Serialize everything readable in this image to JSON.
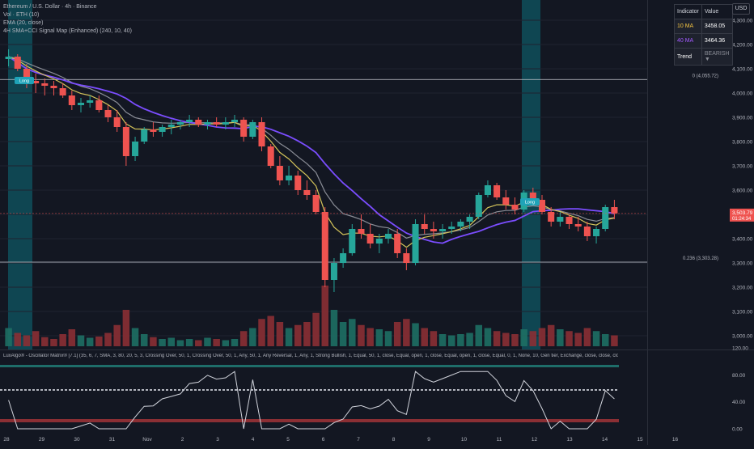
{
  "header": {
    "symbol_title": "Ethereum / U.S. Dollar · 4h · Binance",
    "volume_label": "Vol · ETH (10)",
    "ema_label": "EMA (20, close)",
    "signal_label": "4H SMA+CCI Signal Map (Enhanced) (240, 10, 40)",
    "currency_button": "USD"
  },
  "indicator_table": {
    "header": [
      "Indicator",
      "Value"
    ],
    "rows": [
      {
        "name": "10 MA",
        "value": "3458.05",
        "color": "#f5c542"
      },
      {
        "name": "40 MA",
        "value": "3464.36",
        "color": "#a259ff"
      },
      {
        "name": "Trend",
        "value": "BEARISH ▼",
        "color": "#8a8d96"
      }
    ]
  },
  "oscillator": {
    "title": "LuxAlgo® - Oscillator Matrix® [7.1] (35, 6, 7, SMA, 3, 80, 20, 5, 3, Crossing Over, 50, 1, Crossing Over, 50, 1, Any, 50, 1, Any Reversal, 1, Any, 1, Strong Bullish, 1, Equal, 50, 1, close, Equal, open, 1, close, Equal, open, 1, close, Equal, 0, 1, None, 10, Gen tier, Exchange, close, close, close, close, close, Top, 25,000)",
    "axis_labels": [
      "120.00",
      "80.00",
      "40.00",
      "0.00"
    ]
  },
  "price_axis": {
    "labels": [
      "4,300.00",
      "4,200.00",
      "4,100.00",
      "4,000.00",
      "3,900.00",
      "3,800.00",
      "3,700.00",
      "3,600.00",
      "3,500.00",
      "3,400.00",
      "3,300.00",
      "3,200.00",
      "3,100.00",
      "3,000.00"
    ],
    "current_price": "3,503.79",
    "countdown": "01:24:34"
  },
  "time_axis": {
    "labels": [
      "28",
      "29",
      "30",
      "31",
      "Nov",
      "2",
      "3",
      "4",
      "5",
      "6",
      "7",
      "8",
      "9",
      "10",
      "11",
      "12",
      "13",
      "14",
      "15",
      "16"
    ]
  },
  "fib_levels": [
    {
      "label": "0 (4,055.72)",
      "price": 4055.72
    },
    {
      "label": "0.236 (3,303.28)",
      "price": 3303.28
    }
  ],
  "signal_badges": {
    "long_label": "Long",
    "short_label": "Lon"
  },
  "colors": {
    "background": "#131722",
    "bull": "#26a69a",
    "bear": "#ef5350",
    "ema20": "#d4c45a",
    "ma40": "#7b4dff",
    "ma_gray": "#8a8d96",
    "highlight_band": "#0f4f5a",
    "price_tag": "#ef5350"
  },
  "chart_data": {
    "type": "candlestick",
    "timeframe": "4h",
    "ylim": [
      2950,
      4350
    ],
    "fib_levels": [
      4055.72,
      3303.28
    ],
    "current_price": 3503.79,
    "ohlc": [
      [
        4140,
        4180,
        4110,
        4150
      ],
      [
        4150,
        4160,
        4090,
        4100
      ],
      [
        4100,
        4120,
        4020,
        4050
      ],
      [
        4050,
        4080,
        4000,
        4040
      ],
      [
        4040,
        4060,
        3990,
        4030
      ],
      [
        4030,
        4050,
        3990,
        4020
      ],
      [
        4020,
        4040,
        3980,
        3990
      ],
      [
        3990,
        4010,
        3930,
        3950
      ],
      [
        3950,
        3980,
        3920,
        3960
      ],
      [
        3960,
        3990,
        3940,
        3970
      ],
      [
        3970,
        3990,
        3920,
        3930
      ],
      [
        3930,
        3950,
        3880,
        3900
      ],
      [
        3900,
        3930,
        3840,
        3860
      ],
      [
        3860,
        3880,
        3700,
        3740
      ],
      [
        3740,
        3820,
        3720,
        3800
      ],
      [
        3800,
        3860,
        3790,
        3850
      ],
      [
        3850,
        3880,
        3820,
        3840
      ],
      [
        3840,
        3870,
        3820,
        3860
      ],
      [
        3860,
        3890,
        3830,
        3870
      ],
      [
        3870,
        3890,
        3850,
        3880
      ],
      [
        3880,
        3910,
        3860,
        3890
      ],
      [
        3890,
        3900,
        3860,
        3870
      ],
      [
        3870,
        3890,
        3850,
        3880
      ],
      [
        3880,
        3900,
        3860,
        3870
      ],
      [
        3870,
        3900,
        3850,
        3880
      ],
      [
        3880,
        3910,
        3860,
        3890
      ],
      [
        3890,
        3900,
        3800,
        3820
      ],
      [
        3820,
        3890,
        3810,
        3880
      ],
      [
        3880,
        3900,
        3760,
        3780
      ],
      [
        3780,
        3790,
        3690,
        3700
      ],
      [
        3700,
        3740,
        3620,
        3640
      ],
      [
        3640,
        3700,
        3620,
        3660
      ],
      [
        3660,
        3680,
        3580,
        3600
      ],
      [
        3600,
        3640,
        3560,
        3580
      ],
      [
        3580,
        3600,
        3500,
        3510
      ],
      [
        3510,
        3530,
        3200,
        3230
      ],
      [
        3230,
        3320,
        3180,
        3300
      ],
      [
        3300,
        3360,
        3280,
        3340
      ],
      [
        3340,
        3460,
        3330,
        3440
      ],
      [
        3440,
        3500,
        3400,
        3420
      ],
      [
        3420,
        3460,
        3360,
        3380
      ],
      [
        3380,
        3420,
        3340,
        3400
      ],
      [
        3400,
        3440,
        3380,
        3420
      ],
      [
        3420,
        3440,
        3320,
        3340
      ],
      [
        3340,
        3360,
        3270,
        3300
      ],
      [
        3300,
        3480,
        3290,
        3460
      ],
      [
        3460,
        3500,
        3420,
        3440
      ],
      [
        3440,
        3470,
        3400,
        3430
      ],
      [
        3430,
        3460,
        3400,
        3440
      ],
      [
        3440,
        3470,
        3420,
        3450
      ],
      [
        3450,
        3480,
        3430,
        3470
      ],
      [
        3470,
        3500,
        3440,
        3490
      ],
      [
        3490,
        3590,
        3480,
        3580
      ],
      [
        3580,
        3640,
        3570,
        3620
      ],
      [
        3620,
        3630,
        3560,
        3570
      ],
      [
        3570,
        3600,
        3520,
        3540
      ],
      [
        3540,
        3570,
        3500,
        3520
      ],
      [
        3520,
        3600,
        3510,
        3590
      ],
      [
        3590,
        3610,
        3540,
        3560
      ],
      [
        3560,
        3580,
        3500,
        3510
      ],
      [
        3510,
        3530,
        3450,
        3470
      ],
      [
        3470,
        3510,
        3450,
        3490
      ],
      [
        3490,
        3500,
        3440,
        3460
      ],
      [
        3460,
        3490,
        3430,
        3450
      ],
      [
        3450,
        3470,
        3390,
        3410
      ],
      [
        3410,
        3450,
        3380,
        3440
      ],
      [
        3440,
        3540,
        3430,
        3530
      ],
      [
        3530,
        3560,
        3480,
        3504
      ]
    ],
    "volume": [
      0.3,
      0.22,
      0.18,
      0.25,
      0.15,
      0.12,
      0.2,
      0.28,
      0.18,
      0.14,
      0.16,
      0.22,
      0.35,
      0.6,
      0.3,
      0.2,
      0.15,
      0.12,
      0.14,
      0.1,
      0.12,
      0.1,
      0.14,
      0.12,
      0.1,
      0.12,
      0.25,
      0.3,
      0.45,
      0.5,
      0.4,
      0.3,
      0.35,
      0.4,
      0.55,
      1.0,
      0.6,
      0.4,
      0.45,
      0.35,
      0.3,
      0.28,
      0.25,
      0.4,
      0.45,
      0.38,
      0.3,
      0.25,
      0.2,
      0.18,
      0.2,
      0.22,
      0.35,
      0.3,
      0.25,
      0.22,
      0.2,
      0.28,
      0.25,
      0.3,
      0.35,
      0.28,
      0.25,
      0.22,
      0.3,
      0.25,
      0.2,
      0.18
    ],
    "series": [
      {
        "name": "EMA (20, close)",
        "color": "#d4c45a"
      },
      {
        "name": "40 MA",
        "color": "#7b4dff"
      }
    ],
    "oscillator_range": [
      0,
      120
    ]
  }
}
